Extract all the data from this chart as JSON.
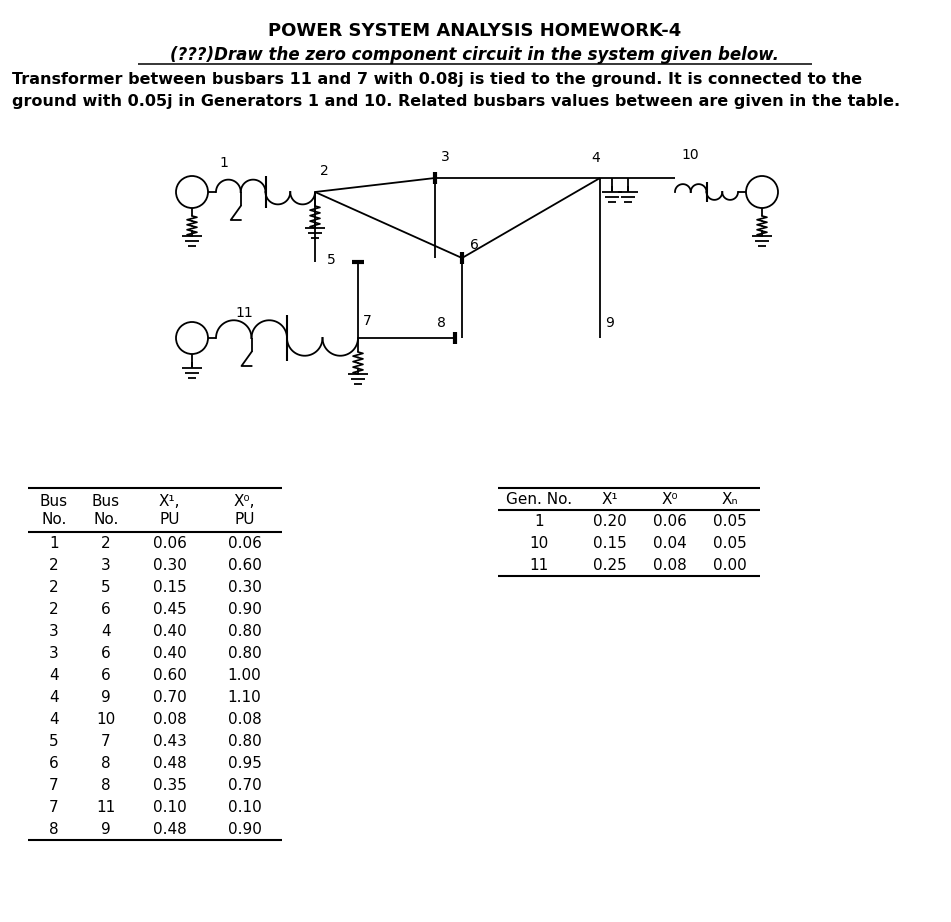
{
  "title": "POWER SYSTEM ANALYSIS HOMEWORK-4",
  "subtitle": "(???)Draw the zero component circuit in the system given below.",
  "description_line1": "Transformer between busbars 11 and 7 with 0.08j is tied to the ground. It is connected to the",
  "description_line2": "ground with 0.05j in Generators 1 and 10. Related busbars values between are given in the table.",
  "bg_color": "#ffffff",
  "table1_hdr1": [
    "Bus",
    "Bus",
    "X¹,",
    "X⁰,"
  ],
  "table1_hdr2": [
    "No.",
    "No.",
    "PU",
    "PU"
  ],
  "table1_data": [
    [
      "1",
      "2",
      "0.06",
      "0.06"
    ],
    [
      "2",
      "3",
      "0.30",
      "0.60"
    ],
    [
      "2",
      "5",
      "0.15",
      "0.30"
    ],
    [
      "2",
      "6",
      "0.45",
      "0.90"
    ],
    [
      "3",
      "4",
      "0.40",
      "0.80"
    ],
    [
      "3",
      "6",
      "0.40",
      "0.80"
    ],
    [
      "4",
      "6",
      "0.60",
      "1.00"
    ],
    [
      "4",
      "9",
      "0.70",
      "1.10"
    ],
    [
      "4",
      "10",
      "0.08",
      "0.08"
    ],
    [
      "5",
      "7",
      "0.43",
      "0.80"
    ],
    [
      "6",
      "8",
      "0.48",
      "0.95"
    ],
    [
      "7",
      "8",
      "0.35",
      "0.70"
    ],
    [
      "7",
      "11",
      "0.10",
      "0.10"
    ],
    [
      "8",
      "9",
      "0.48",
      "0.90"
    ]
  ],
  "table2_hdr": [
    "Gen. No.",
    "X¹",
    "X⁰",
    "Xₙ"
  ],
  "table2_data": [
    [
      "1",
      "0.20",
      "0.06",
      "0.05"
    ],
    [
      "10",
      "0.15",
      "0.04",
      "0.05"
    ],
    [
      "11",
      "0.25",
      "0.08",
      "0.00"
    ]
  ]
}
